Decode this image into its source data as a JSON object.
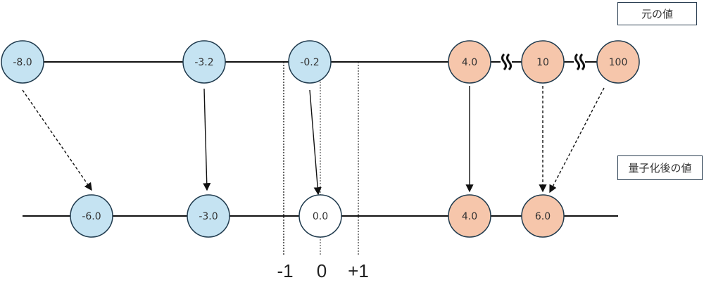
{
  "labels": {
    "original": "元の値",
    "quantized": "量子化後の値"
  },
  "ticks": [
    "-1",
    "0",
    "+1"
  ],
  "colors": {
    "negative": "#c5e3f2",
    "positive": "#f6c6ab",
    "zero": "#ffffff",
    "stroke": "#1f3a4d"
  },
  "original_values": [
    {
      "text": "-8.0",
      "sign": "negative"
    },
    {
      "text": "-3.2",
      "sign": "negative"
    },
    {
      "text": "-0.2",
      "sign": "negative"
    },
    {
      "text": "4.0",
      "sign": "positive"
    },
    {
      "text": "10",
      "sign": "positive"
    },
    {
      "text": "100",
      "sign": "positive"
    }
  ],
  "quantized_values": [
    {
      "text": "-6.0",
      "sign": "negative"
    },
    {
      "text": "-3.0",
      "sign": "negative"
    },
    {
      "text": "0.0",
      "sign": "zero"
    },
    {
      "text": "4.0",
      "sign": "positive"
    },
    {
      "text": "6.0",
      "sign": "positive"
    }
  ],
  "mappings": [
    {
      "from": "-8.0",
      "to": "-6.0",
      "style": "dashed"
    },
    {
      "from": "-3.2",
      "to": "-3.0",
      "style": "solid"
    },
    {
      "from": "-0.2",
      "to": "0.0",
      "style": "solid"
    },
    {
      "from": "4.0",
      "to": "4.0",
      "style": "solid"
    },
    {
      "from": "10",
      "to": "6.0",
      "style": "dashed"
    },
    {
      "from": "100",
      "to": "6.0",
      "style": "dashed"
    }
  ]
}
